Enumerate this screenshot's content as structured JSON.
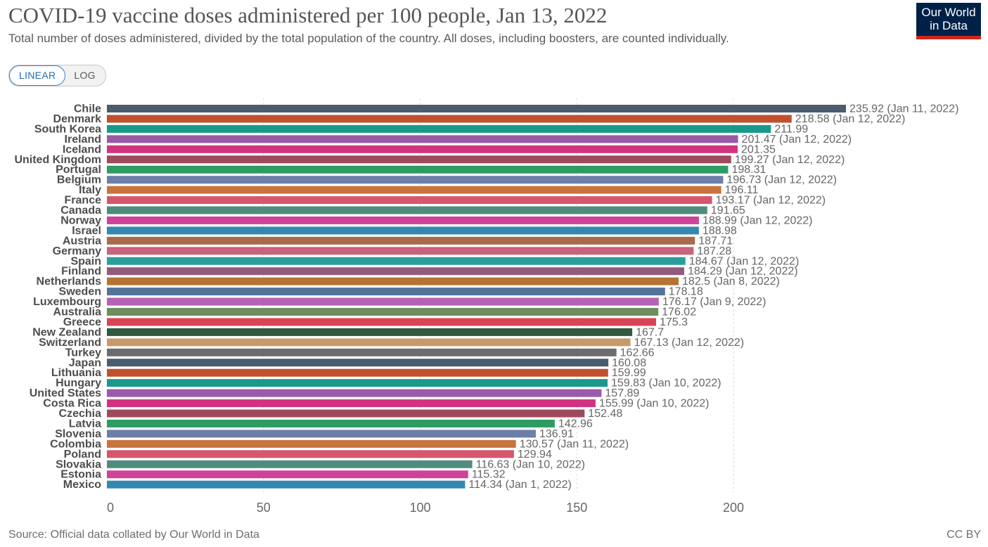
{
  "header": {
    "title": "COVID-19 vaccine doses administered per 100 people, Jan 13, 2022",
    "subtitle": "Total number of doses administered, divided by the total population of the country. All doses, including boosters, are counted individually.",
    "logo_line1": "Our World",
    "logo_line2": "in Data"
  },
  "controls": {
    "linear_label": "LINEAR",
    "log_label": "LOG",
    "selected": "LINEAR"
  },
  "footer": {
    "source": "Source: Official data collated by Our World in Data",
    "license": "CC BY"
  },
  "chart_data": {
    "type": "bar",
    "orientation": "horizontal",
    "xlim": [
      0,
      235.92
    ],
    "x_ticks": [
      "0",
      "50",
      "100",
      "150",
      "200"
    ],
    "grid": "vertical dashed",
    "rows": [
      {
        "country": "Chile",
        "value": 235.92,
        "label": "235.92 (Jan 11, 2022)",
        "color": "#4c5c6f"
      },
      {
        "country": "Denmark",
        "value": 218.58,
        "label": "218.58 (Jan 12, 2022)",
        "color": "#c1502e"
      },
      {
        "country": "South Korea",
        "value": 211.99,
        "label": "211.99",
        "color": "#18998c"
      },
      {
        "country": "Ireland",
        "value": 201.47,
        "label": "201.47 (Jan 12, 2022)",
        "color": "#9a5aa9"
      },
      {
        "country": "Iceland",
        "value": 201.35,
        "label": "201.35",
        "color": "#d1347f"
      },
      {
        "country": "United Kingdom",
        "value": 199.27,
        "label": "199.27 (Jan 12, 2022)",
        "color": "#9e4a5c"
      },
      {
        "country": "Portugal",
        "value": 198.31,
        "label": "198.31",
        "color": "#2e9c62"
      },
      {
        "country": "Belgium",
        "value": 196.73,
        "label": "196.73 (Jan 12, 2022)",
        "color": "#6b7fa8"
      },
      {
        "country": "Italy",
        "value": 196.11,
        "label": "196.11",
        "color": "#c8743d"
      },
      {
        "country": "France",
        "value": 193.17,
        "label": "193.17 (Jan 12, 2022)",
        "color": "#d6566d"
      },
      {
        "country": "Canada",
        "value": 191.65,
        "label": "191.65",
        "color": "#4f8c7f"
      },
      {
        "country": "Norway",
        "value": 188.99,
        "label": "188.99 (Jan 12, 2022)",
        "color": "#d0419a"
      },
      {
        "country": "Israel",
        "value": 188.98,
        "label": "188.98",
        "color": "#3388b0"
      },
      {
        "country": "Austria",
        "value": 187.71,
        "label": "187.71",
        "color": "#a86a4a"
      },
      {
        "country": "Germany",
        "value": 187.28,
        "label": "187.28",
        "color": "#c9637a"
      },
      {
        "country": "Spain",
        "value": 184.67,
        "label": "184.67 (Jan 12, 2022)",
        "color": "#2c9d9d"
      },
      {
        "country": "Finland",
        "value": 184.29,
        "label": "184.29 (Jan 12, 2022)",
        "color": "#945a7e"
      },
      {
        "country": "Netherlands",
        "value": 182.5,
        "label": "182.5 (Jan 8, 2022)",
        "color": "#b47434"
      },
      {
        "country": "Sweden",
        "value": 178.18,
        "label": "178.18",
        "color": "#52739a"
      },
      {
        "country": "Luxembourg",
        "value": 176.17,
        "label": "176.17 (Jan 9, 2022)",
        "color": "#b462b4"
      },
      {
        "country": "Australia",
        "value": 176.02,
        "label": "176.02",
        "color": "#6e8d5e"
      },
      {
        "country": "Greece",
        "value": 175.3,
        "label": "175.3",
        "color": "#d84455"
      },
      {
        "country": "New Zealand",
        "value": 167.7,
        "label": "167.7",
        "color": "#2f5a3f"
      },
      {
        "country": "Switzerland",
        "value": 167.13,
        "label": "167.13 (Jan 12, 2022)",
        "color": "#c89a6a"
      },
      {
        "country": "Turkey",
        "value": 162.66,
        "label": "162.66",
        "color": "#6b6b70"
      },
      {
        "country": "Japan",
        "value": 160.08,
        "label": "160.08",
        "color": "#4c5c6f"
      },
      {
        "country": "Lithuania",
        "value": 159.99,
        "label": "159.99",
        "color": "#c1502e"
      },
      {
        "country": "Hungary",
        "value": 159.83,
        "label": "159.83 (Jan 10, 2022)",
        "color": "#18998c"
      },
      {
        "country": "United States",
        "value": 157.89,
        "label": "157.89",
        "color": "#9a5aa9"
      },
      {
        "country": "Costa Rica",
        "value": 155.99,
        "label": "155.99 (Jan 10, 2022)",
        "color": "#d1347f"
      },
      {
        "country": "Czechia",
        "value": 152.48,
        "label": "152.48",
        "color": "#9e4a5c"
      },
      {
        "country": "Latvia",
        "value": 142.96,
        "label": "142.96",
        "color": "#2e9c62"
      },
      {
        "country": "Slovenia",
        "value": 136.91,
        "label": "136.91",
        "color": "#6b7fa8"
      },
      {
        "country": "Colombia",
        "value": 130.57,
        "label": "130.57 (Jan 11, 2022)",
        "color": "#c8743d"
      },
      {
        "country": "Poland",
        "value": 129.94,
        "label": "129.94",
        "color": "#d6566d"
      },
      {
        "country": "Slovakia",
        "value": 116.63,
        "label": "116.63 (Jan 10, 2022)",
        "color": "#4f8c7f"
      },
      {
        "country": "Estonia",
        "value": 115.32,
        "label": "115.32",
        "color": "#d0419a"
      },
      {
        "country": "Mexico",
        "value": 114.34,
        "label": "114.34 (Jan 1, 2022)",
        "color": "#3388b0"
      }
    ]
  }
}
